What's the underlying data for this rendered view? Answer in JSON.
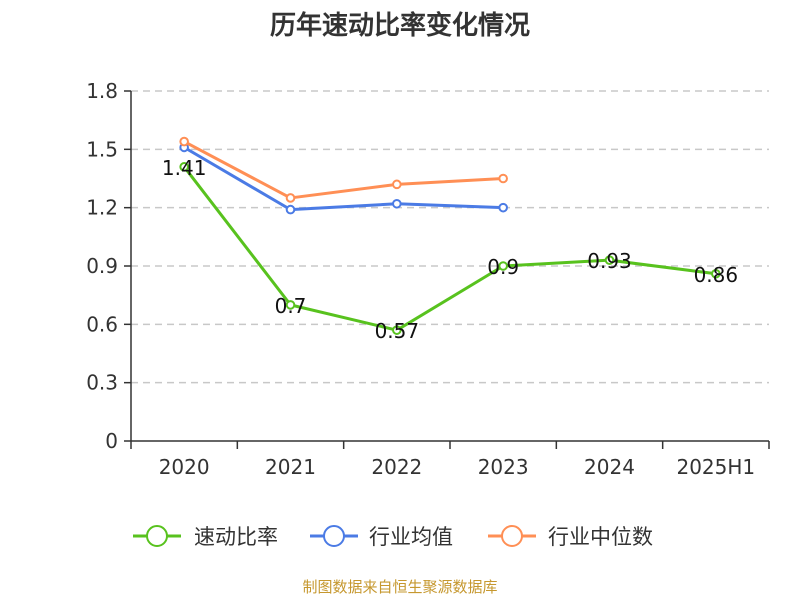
{
  "chart_data": {
    "type": "line",
    "title": "历年速动比率变化情况",
    "categories": [
      "2020",
      "2021",
      "2022",
      "2023",
      "2024",
      "2025H1"
    ],
    "ylim": [
      0,
      1.8
    ],
    "yticks": [
      "0",
      "0.3",
      "0.6",
      "0.9",
      "1.2",
      "1.5",
      "1.8"
    ],
    "ytick_values": [
      0,
      0.3,
      0.6,
      0.9,
      1.2,
      1.5,
      1.8
    ],
    "grid": true,
    "legend_position": "bottom",
    "series": [
      {
        "name": "速动比率",
        "color": "#58c21e",
        "values": [
          1.41,
          0.7,
          0.57,
          0.9,
          0.93,
          0.86
        ],
        "labels": [
          "1.41",
          "0.7",
          "0.57",
          "0.9",
          "0.93",
          "0.86"
        ]
      },
      {
        "name": "行业均值",
        "color": "#4b7be5",
        "values": [
          1.51,
          1.19,
          1.22,
          1.2,
          null,
          null
        ],
        "labels": []
      },
      {
        "name": "行业中位数",
        "color": "#ff8f55",
        "values": [
          1.54,
          1.25,
          1.32,
          1.35,
          null,
          null
        ],
        "labels": []
      }
    ]
  },
  "source_text": "制图数据来自恒生聚源数据库"
}
